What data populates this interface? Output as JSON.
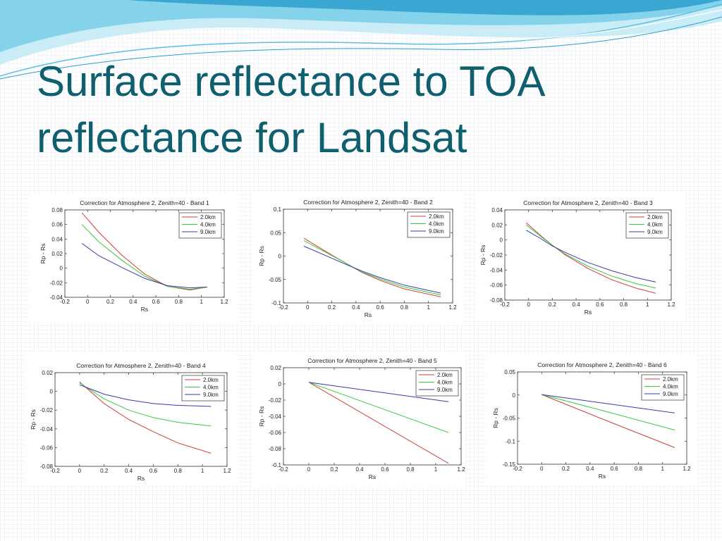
{
  "slide": {
    "title_lines": [
      "Surface reflectance to TOA",
      "reflectance for Landsat"
    ],
    "theme_colors": {
      "title": "#0f5f6e",
      "wave_light": "#b8e4f2",
      "wave_mid": "#6ccbe6",
      "wave_dark": "#2a9ccc"
    }
  },
  "chart_data": [
    {
      "type": "line",
      "title": "Correction for Atmosphere 2, Zenith=40 - Band 1",
      "xlabel": "Rs",
      "ylabel": "Rp - Rs",
      "xlim": [
        -0.2,
        1.2
      ],
      "ylim": [
        -0.04,
        0.08
      ],
      "xticks": [
        -0.2,
        0,
        0.2,
        0.4,
        0.6,
        0.8,
        1,
        1.2
      ],
      "yticks": [
        -0.04,
        -0.02,
        0,
        0.02,
        0.04,
        0.06,
        0.08
      ],
      "x": [
        -0.05,
        0.1,
        0.3,
        0.5,
        0.7,
        0.9,
        1.05
      ],
      "series": [
        {
          "name": "2.0km",
          "color": "#d04040",
          "values": [
            0.076,
            0.049,
            0.018,
            -0.008,
            -0.025,
            -0.03,
            -0.026
          ]
        },
        {
          "name": "4.0km",
          "color": "#3cc83c",
          "values": [
            0.06,
            0.036,
            0.011,
            -0.011,
            -0.025,
            -0.029,
            -0.026
          ]
        },
        {
          "name": "9.0km",
          "color": "#3a3aaa",
          "values": [
            0.034,
            0.017,
            0.001,
            -0.014,
            -0.024,
            -0.027,
            -0.026
          ]
        }
      ],
      "legend": "top-right"
    },
    {
      "type": "line",
      "title": "Correction for Atmosphere 2, Zenith=40 - Band 2",
      "xlabel": "Rs",
      "ylabel": "Rp - Rs",
      "xlim": [
        -0.2,
        1.2
      ],
      "ylim": [
        -0.1,
        0.1
      ],
      "xticks": [
        -0.2,
        0,
        0.2,
        0.4,
        0.6,
        0.8,
        1,
        1.2
      ],
      "yticks": [
        -0.1,
        -0.05,
        0,
        0.05,
        0.1
      ],
      "x": [
        -0.03,
        0.15,
        0.3,
        0.45,
        0.6,
        0.8,
        1.1
      ],
      "series": [
        {
          "name": "2.0km",
          "color": "#d04040",
          "values": [
            0.038,
            0.01,
            -0.013,
            -0.035,
            -0.052,
            -0.07,
            -0.087
          ]
        },
        {
          "name": "4.0km",
          "color": "#3cc83c",
          "values": [
            0.033,
            0.008,
            -0.013,
            -0.034,
            -0.049,
            -0.066,
            -0.083
          ]
        },
        {
          "name": "9.0km",
          "color": "#3a3aaa",
          "values": [
            0.021,
            0.001,
            -0.016,
            -0.032,
            -0.046,
            -0.062,
            -0.079
          ]
        }
      ],
      "legend": "top-right"
    },
    {
      "type": "line",
      "title": "Correction for Atmosphere 2, Zenith=40 - Band 3",
      "xlabel": "Rs",
      "ylabel": "Rp - Rs",
      "xlim": [
        -0.2,
        1.2
      ],
      "ylim": [
        -0.08,
        0.04
      ],
      "xticks": [
        -0.2,
        0,
        0.2,
        0.4,
        0.6,
        0.8,
        1,
        1.2
      ],
      "yticks": [
        -0.08,
        -0.06,
        -0.04,
        -0.02,
        0,
        0.02,
        0.04
      ],
      "x": [
        -0.02,
        0.1,
        0.2,
        0.3,
        0.5,
        0.7,
        0.9,
        1.07
      ],
      "series": [
        {
          "name": "2.0km",
          "color": "#d04040",
          "values": [
            0.023,
            0.006,
            -0.007,
            -0.019,
            -0.038,
            -0.053,
            -0.064,
            -0.071
          ]
        },
        {
          "name": "4.0km",
          "color": "#3cc83c",
          "values": [
            0.02,
            0.005,
            -0.007,
            -0.018,
            -0.035,
            -0.048,
            -0.058,
            -0.064
          ]
        },
        {
          "name": "9.0km",
          "color": "#3a3aaa",
          "values": [
            0.013,
            0.002,
            -0.008,
            -0.016,
            -0.03,
            -0.041,
            -0.05,
            -0.056
          ]
        }
      ],
      "legend": "top-right"
    },
    {
      "type": "line",
      "title": "Correction for Atmosphere 2, Zenith=40 - Band 4",
      "xlabel": "Rs",
      "ylabel": "Rp - Rs",
      "xlim": [
        -0.2,
        1.2
      ],
      "ylim": [
        -0.08,
        0.02
      ],
      "xticks": [
        -0.2,
        0,
        0.2,
        0.4,
        0.6,
        0.8,
        1,
        1.2
      ],
      "yticks": [
        -0.08,
        -0.06,
        -0.04,
        -0.02,
        0,
        0.02
      ],
      "x": [
        0,
        0.2,
        0.4,
        0.6,
        0.8,
        1.07
      ],
      "series": [
        {
          "name": "2.0km",
          "color": "#d04040",
          "values": [
            0.01,
            -0.013,
            -0.03,
            -0.043,
            -0.055,
            -0.066
          ]
        },
        {
          "name": "4.0km",
          "color": "#3cc83c",
          "values": [
            0.009,
            -0.008,
            -0.02,
            -0.028,
            -0.033,
            -0.037
          ]
        },
        {
          "name": "9.0km",
          "color": "#3a3aaa",
          "values": [
            0.007,
            -0.003,
            -0.009,
            -0.013,
            -0.015,
            -0.016
          ]
        }
      ],
      "legend": "top-right"
    },
    {
      "type": "line",
      "title": "Correction for Atmosphere 2, Zenith=40 - Band 5",
      "xlabel": "Rs",
      "ylabel": "Rp - Rs",
      "xlim": [
        -0.2,
        1.2
      ],
      "ylim": [
        -0.1,
        0.02
      ],
      "xticks": [
        -0.2,
        0,
        0.2,
        0.4,
        0.6,
        0.8,
        1,
        1.2
      ],
      "yticks": [
        -0.1,
        -0.08,
        -0.06,
        -0.04,
        -0.02,
        0,
        0.02
      ],
      "x": [
        0,
        0.55,
        1.1
      ],
      "series": [
        {
          "name": "2.0km",
          "color": "#d04040",
          "values": [
            0.002,
            -0.048,
            -0.098
          ]
        },
        {
          "name": "4.0km",
          "color": "#3cc83c",
          "values": [
            0.002,
            -0.029,
            -0.06
          ]
        },
        {
          "name": "9.0km",
          "color": "#3a3aaa",
          "values": [
            0.002,
            -0.01,
            -0.022
          ]
        }
      ],
      "legend": "top-right"
    },
    {
      "type": "line",
      "title": "Correction for Atmosphere 2, Zenith=40 - Band 6",
      "xlabel": "Rs",
      "ylabel": "Rp - Rs",
      "xlim": [
        -0.2,
        1.2
      ],
      "ylim": [
        -0.15,
        0.05
      ],
      "xticks": [
        -0.2,
        0,
        0.2,
        0.4,
        0.6,
        0.8,
        1,
        1.2
      ],
      "yticks": [
        -0.15,
        -0.1,
        -0.05,
        0,
        0.05
      ],
      "x": [
        0,
        0.55,
        1.1
      ],
      "series": [
        {
          "name": "2.0km",
          "color": "#d04040",
          "values": [
            0.001,
            -0.057,
            -0.114
          ]
        },
        {
          "name": "4.0km",
          "color": "#3cc83c",
          "values": [
            0.001,
            -0.037,
            -0.076
          ]
        },
        {
          "name": "9.0km",
          "color": "#3a3aaa",
          "values": [
            0.001,
            -0.019,
            -0.039
          ]
        }
      ],
      "legend": "top-right"
    }
  ]
}
